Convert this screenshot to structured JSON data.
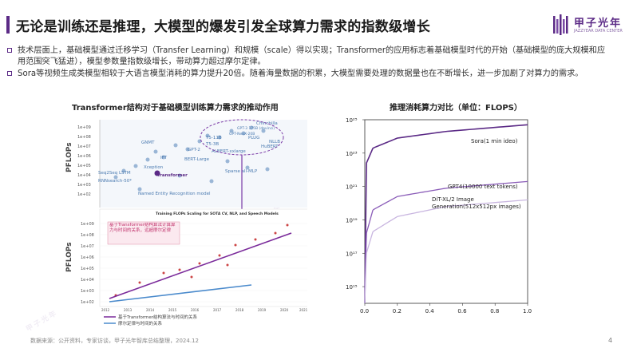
{
  "header": {
    "title": "无论是训练还是推理，大模型的爆发引发全球算力需求的指数级增长",
    "logo_name": "甲子光年",
    "logo_sub": "JAZZYEAR DATA CENTER"
  },
  "bullets": [
    "技术层面上，基础模型通过迁移学习（Transfer Learning）和规模（scale）得以实现；Transformer的应用标志着基础模型时代的开始（基础模型的庞大规模和应用范围突飞猛进），模型参数量指数级增长，带动算力超过摩尔定律。",
    "Sora等视频生成类模型相较于大语言模型消耗的算力提升20倍。随着海量数据的积累，大模型需要处理的数据量也在不断增长，进一步加剧了对算力的需求。"
  ],
  "left_chart": {
    "title": "Transformer结构对于基础模型训练算力需求的推动作用",
    "ylabel": "PFLOPs",
    "upper_ticks": [
      "1e+09",
      "1e+08",
      "1e+07",
      "1e+06",
      "1e+05",
      "1e+04",
      "1e+03",
      "1e+02"
    ],
    "upper_labels": [
      "GNMT",
      "Chinchilla",
      "GPT-3 175B (davinci)",
      "GPT-NeoX-20B",
      "T5-11B",
      "T5-3B",
      "PLUG",
      "NLLB",
      "HuBERT",
      "ALBERT-xxlarge",
      "GPT-2",
      "BERT-Large",
      "IFT",
      "Xception",
      "Transformer",
      "Sparse all-MLP",
      "Seq2Seq LSTM",
      "RNNsearch-50*",
      "Named Entity Recognition model"
    ],
    "inset_title": "Training FLOPs Scaling for SOTA CV, NLP, and Speech Models",
    "inset_ticks": [
      "1e+09",
      "1e+08",
      "1e+07",
      "1e+06",
      "1e+05",
      "1e+04",
      "1e+03",
      "1e+02"
    ],
    "inset_years": [
      "2012",
      "2013",
      "2014",
      "2015",
      "2016",
      "2017",
      "2018",
      "2019",
      "2020",
      "2021"
    ],
    "inset_note": "基于Transformer结构算法计算算力与时间的关系，远超摩尔定律",
    "legend": [
      "基于Transformer结构算法与时间的关系",
      "摩尔定律与时间的关系"
    ]
  },
  "right_chart": {
    "title": "推理消耗算力对比（单位：FLOPS）",
    "y_ticks": [
      "10²⁵",
      "10²³",
      "10²¹",
      "10¹⁹",
      "10¹⁷",
      "10¹⁵"
    ],
    "x_ticks": [
      "0.0",
      "0.2",
      "0.4",
      "0.6",
      "0.8",
      "1.0"
    ],
    "series_labels": [
      "Sora(1 min ideo)",
      "GPT4(10000 text tokens)",
      "DiT-XL/2 Image Generation(512x512px images)"
    ]
  },
  "chart_data": {
    "type": "line",
    "title": "推理消耗算力对比（单位：FLOPS）",
    "xlim": [
      0,
      1
    ],
    "ylim_log10": [
      14,
      25
    ],
    "series": [
      {
        "name": "Sora(1 min ideo)",
        "color": "#5b2a86",
        "x": [
          0.0,
          0.01,
          0.05,
          0.2,
          0.5,
          1.0
        ],
        "y_log10": [
          14,
          22.4,
          23.3,
          23.9,
          24.3,
          24.7
        ]
      },
      {
        "name": "GPT4(10000 text tokens)",
        "color": "#8a5cb8",
        "x": [
          0.0,
          0.01,
          0.05,
          0.2,
          0.5,
          1.0
        ],
        "y_log10": [
          14,
          18.2,
          19.6,
          20.4,
          20.9,
          21.3
        ]
      },
      {
        "name": "DiT-XL/2 Image Generation(512x512px images)",
        "color": "#c9b6e0",
        "x": [
          0.0,
          0.01,
          0.05,
          0.2,
          0.5,
          1.0
        ],
        "y_log10": [
          14,
          17.0,
          18.3,
          19.2,
          19.8,
          20.2
        ]
      }
    ]
  },
  "footer": {
    "source": "数据来源：公开资料，专家访谈，甲子光年智库总结整理，2024.12",
    "page": "4"
  }
}
